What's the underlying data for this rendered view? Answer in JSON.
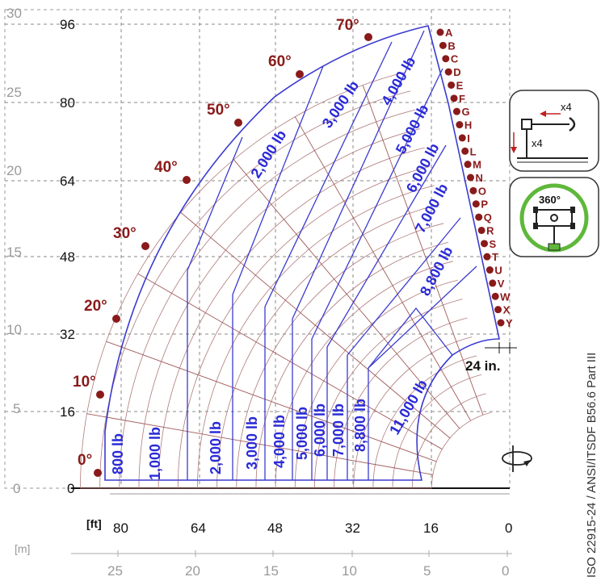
{
  "chart_data": {
    "type": "load-chart",
    "axes": {
      "height_ft_ticks": [
        "96",
        "80",
        "64",
        "48",
        "32",
        "16",
        "0"
      ],
      "height_m_ticks": [
        "30",
        "25",
        "20",
        "15",
        "10",
        "5",
        "0"
      ],
      "reach_ft_ticks": [
        "80",
        "64",
        "48",
        "32",
        "16",
        "0"
      ],
      "reach_m_ticks": [
        "25",
        "20",
        "15",
        "10",
        "5",
        "0"
      ],
      "reach_ft_unit": "[ft]",
      "reach_m_unit": "[m]"
    },
    "boom_angles": [
      "0°",
      "10°",
      "20°",
      "30°",
      "40°",
      "50°",
      "60°",
      "70°"
    ],
    "extension_marks": [
      "A",
      "B",
      "C",
      "D",
      "E",
      "F",
      "G",
      "H",
      "I",
      "L",
      "M",
      "N",
      "O",
      "P",
      "Q",
      "R",
      "S",
      "T",
      "U",
      "V",
      "W",
      "X",
      "Y"
    ],
    "load_zones_lower": [
      "800 lb",
      "1,000 lb",
      "2,000 lb",
      "3,000 lb",
      "4,000 lb",
      "5,000 lb",
      "6,000 lb",
      "7,000 lb",
      "8,800 lb",
      "11,000 lb"
    ],
    "load_zones_upper": [
      "2,000 lb",
      "3,000 lb",
      "4,000 lb",
      "5,000 lb",
      "6,000 lb",
      "7,000 lb",
      "8,800 lb"
    ],
    "clearance_label": "24 in.",
    "standard_label": "ISO 22915-24  /  ANSI/ITSDF B56.6 Part III",
    "outrigger_icon_labels": [
      "x4",
      "x4"
    ],
    "rotation_icon_label": "360°"
  },
  "colors": {
    "envelope": "#3b3bd0",
    "load_text": "#2a2ad8",
    "angle": "#8a1a1a",
    "arc": "#b07a7a",
    "grid": "#8a8a8a",
    "rotation_ring": "#5fb83a"
  }
}
